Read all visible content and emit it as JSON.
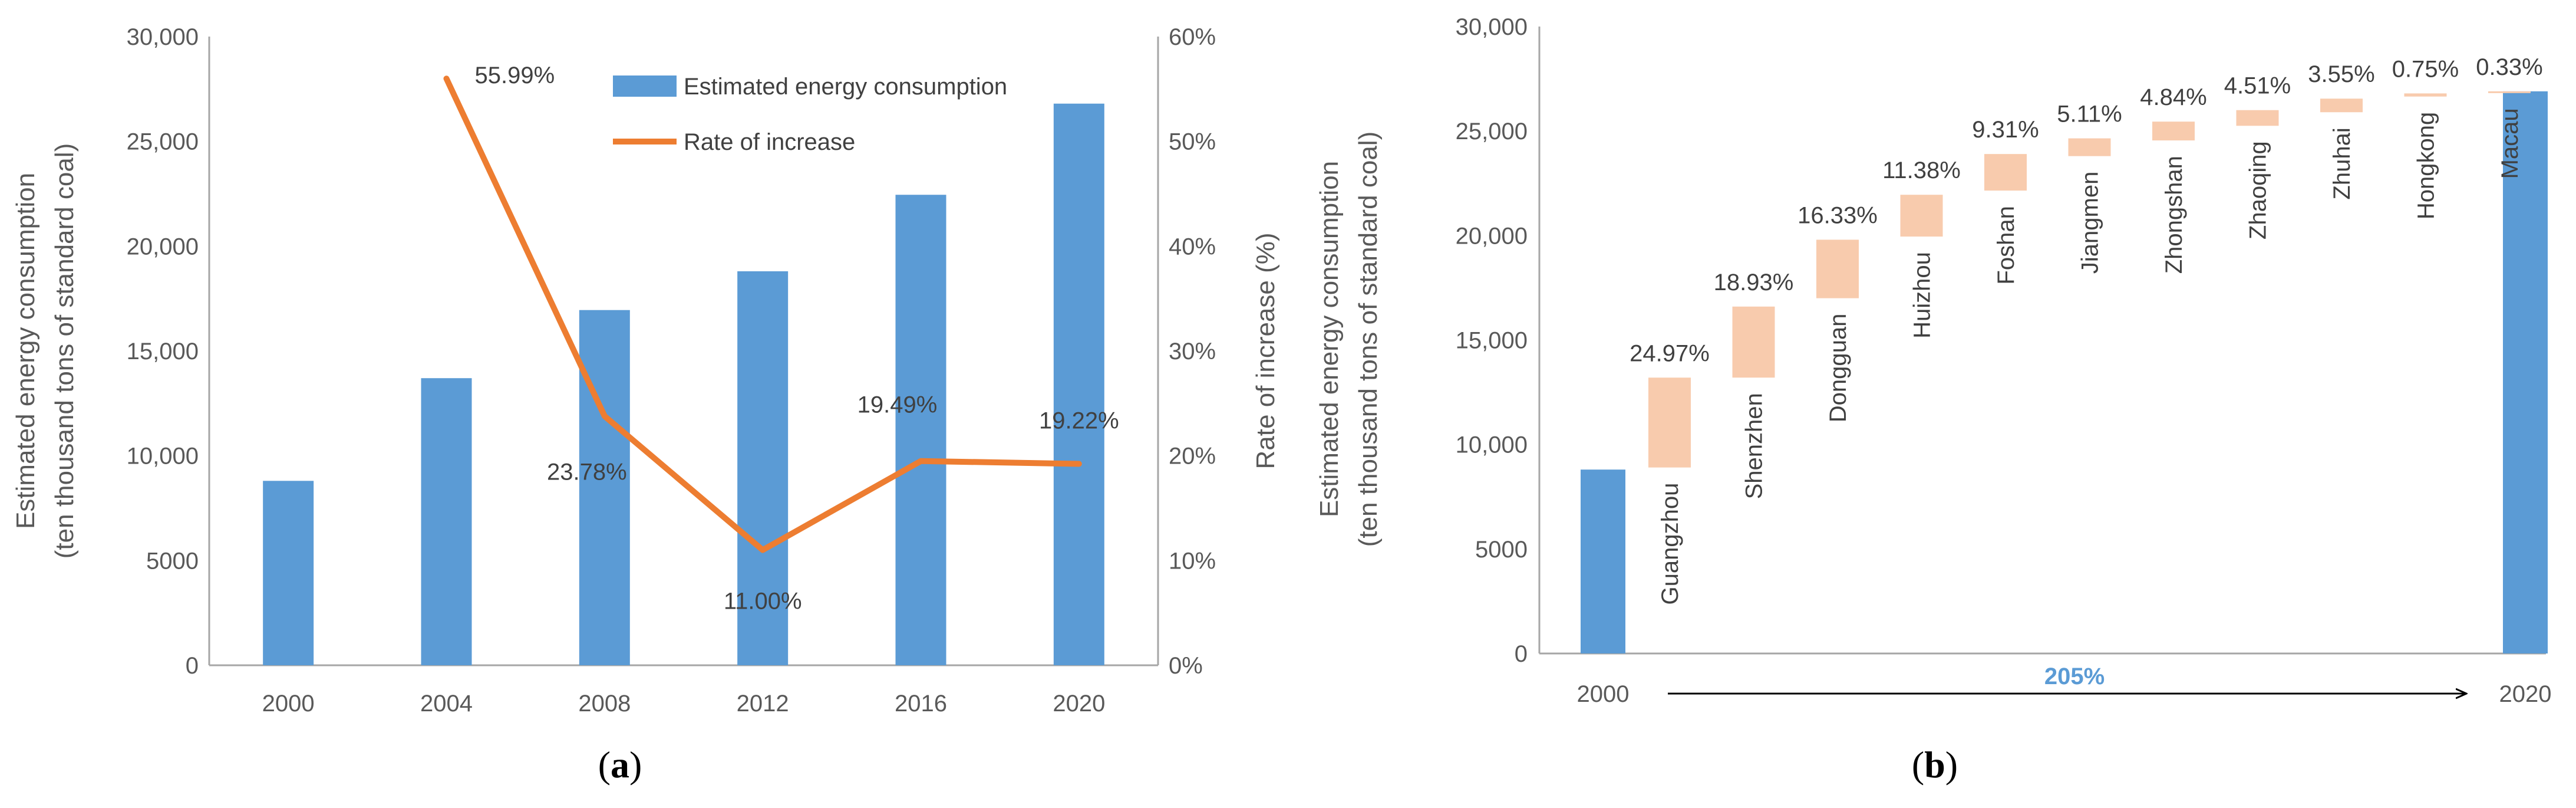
{
  "colors": {
    "bar": "#5b9bd5",
    "line": "#ed7d31",
    "increment": "#f8cbad",
    "axis": "#a6a6a6",
    "text": "#595959",
    "span": "#5b9bd5"
  },
  "chart_data": [
    {
      "panel": "(a)",
      "panel_parts": {
        "open": "(",
        "letter": "a",
        "close": ")"
      },
      "type": "bar",
      "categories": [
        "2000",
        "2004",
        "2008",
        "2012",
        "2016",
        "2020"
      ],
      "series": [
        {
          "name": "Estimated energy consumption",
          "type": "bar",
          "axis": "left",
          "values": [
            8800,
            13700,
            16950,
            18800,
            22450,
            26800
          ]
        },
        {
          "name": "Rate of increase",
          "type": "line",
          "axis": "right",
          "x": [
            "2004",
            "2008",
            "2012",
            "2016",
            "2020"
          ],
          "values": [
            55.99,
            23.78,
            11.0,
            19.49,
            19.22
          ],
          "labels": [
            "55.99%",
            "23.78%",
            "11.00%",
            "19.49%",
            "19.22%"
          ]
        }
      ],
      "ylabel_lines": [
        "Estimated energy consumption",
        "(ten thousand tons of standard coal)"
      ],
      "ylabel2": "Rate of increase (%)",
      "ylim": [
        0,
        30000
      ],
      "yticks": [
        "0",
        "5000",
        "10,000",
        "15,000",
        "20,000",
        "25,000",
        "30,000"
      ],
      "ylim2": [
        0,
        60
      ],
      "yticks2": [
        "0%",
        "10%",
        "20%",
        "30%",
        "40%",
        "50%",
        "60%"
      ],
      "grid": false,
      "legend_position": "top-right"
    },
    {
      "panel": "(b)",
      "panel_parts": {
        "open": "(",
        "letter": "b",
        "close": ")"
      },
      "type": "bar",
      "subtype": "waterfall",
      "start": {
        "label": "2000",
        "value": 8800
      },
      "end": {
        "label": "2020",
        "value": 26900
      },
      "steps": [
        {
          "city": "Guangzhou",
          "pct": "24.97%",
          "from": 8900,
          "to": 13200
        },
        {
          "city": "Shenzhen",
          "pct": "18.93%",
          "from": 13200,
          "to": 16600
        },
        {
          "city": "Dongguan",
          "pct": "16.33%",
          "from": 17000,
          "to": 19800
        },
        {
          "city": "Huizhou",
          "pct": "11.38%",
          "from": 19950,
          "to": 21950
        },
        {
          "city": "Foshan",
          "pct": "9.31%",
          "from": 22150,
          "to": 23900
        },
        {
          "city": "Jiangmen",
          "pct": "5.11%",
          "from": 23800,
          "to": 24650
        },
        {
          "city": "Zhongshan",
          "pct": "4.84%",
          "from": 24550,
          "to": 25450
        },
        {
          "city": "Zhaoqing",
          "pct": "4.51%",
          "from": 25250,
          "to": 26000
        },
        {
          "city": "Zhuhai",
          "pct": "3.55%",
          "from": 25900,
          "to": 26550
        },
        {
          "city": "Hongkong",
          "pct": "0.75%",
          "from": 26650,
          "to": 26800
        },
        {
          "city": "Macau",
          "pct": "0.33%",
          "from": 26830,
          "to": 26900
        }
      ],
      "span_label": "205%",
      "ylabel_lines": [
        "Estimated energy consumption",
        "(ten thousand tons of standard coal)"
      ],
      "ylim": [
        0,
        30000
      ],
      "yticks": [
        "0",
        "5000",
        "10,000",
        "15,000",
        "20,000",
        "25,000",
        "30,000"
      ],
      "grid": false
    }
  ]
}
